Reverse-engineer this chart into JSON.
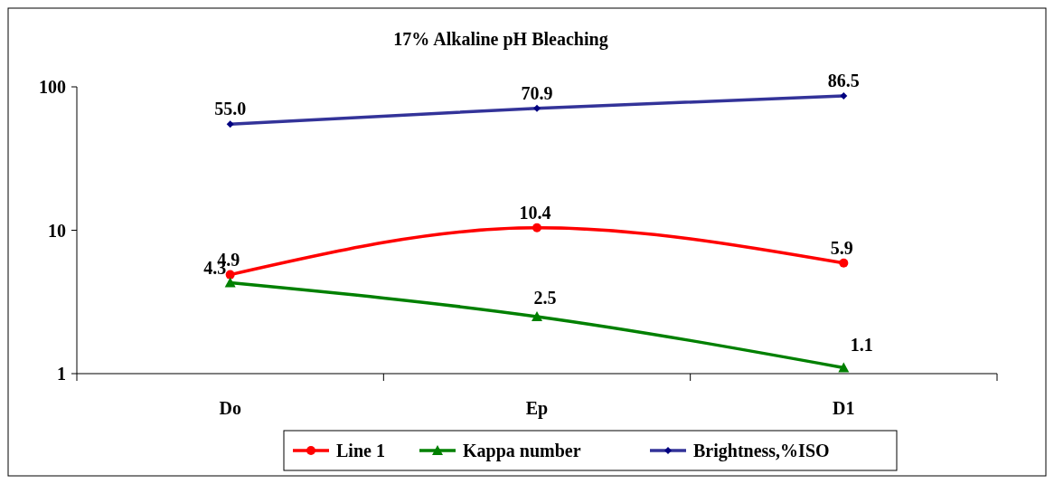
{
  "chart_data": {
    "type": "line",
    "title": "17% Alkaline pH Bleaching",
    "categories": [
      "Do",
      "Ep",
      "D1"
    ],
    "log": "y",
    "ylim": [
      1,
      100
    ],
    "yticks": [
      1,
      10,
      100
    ],
    "grid": false,
    "legend": "bottom",
    "series": [
      {
        "name": "Line 1",
        "color": "#ff0000",
        "marker": "circle",
        "values": [
          4.9,
          10.4,
          5.9
        ],
        "value_labels": [
          "4.9",
          "10.4",
          "5.9"
        ]
      },
      {
        "name": "Kappa number",
        "color": "#008000",
        "marker": "triangle",
        "values": [
          4.3,
          2.5,
          1.1
        ],
        "value_labels": [
          "4.3",
          "2.5",
          "1.1"
        ]
      },
      {
        "name": "Brightness,%ISO",
        "color": "#333399",
        "marker": "diamond",
        "values": [
          55.0,
          70.9,
          86.5
        ],
        "value_labels": [
          "55.0",
          "70.9",
          "86.5"
        ]
      }
    ]
  }
}
